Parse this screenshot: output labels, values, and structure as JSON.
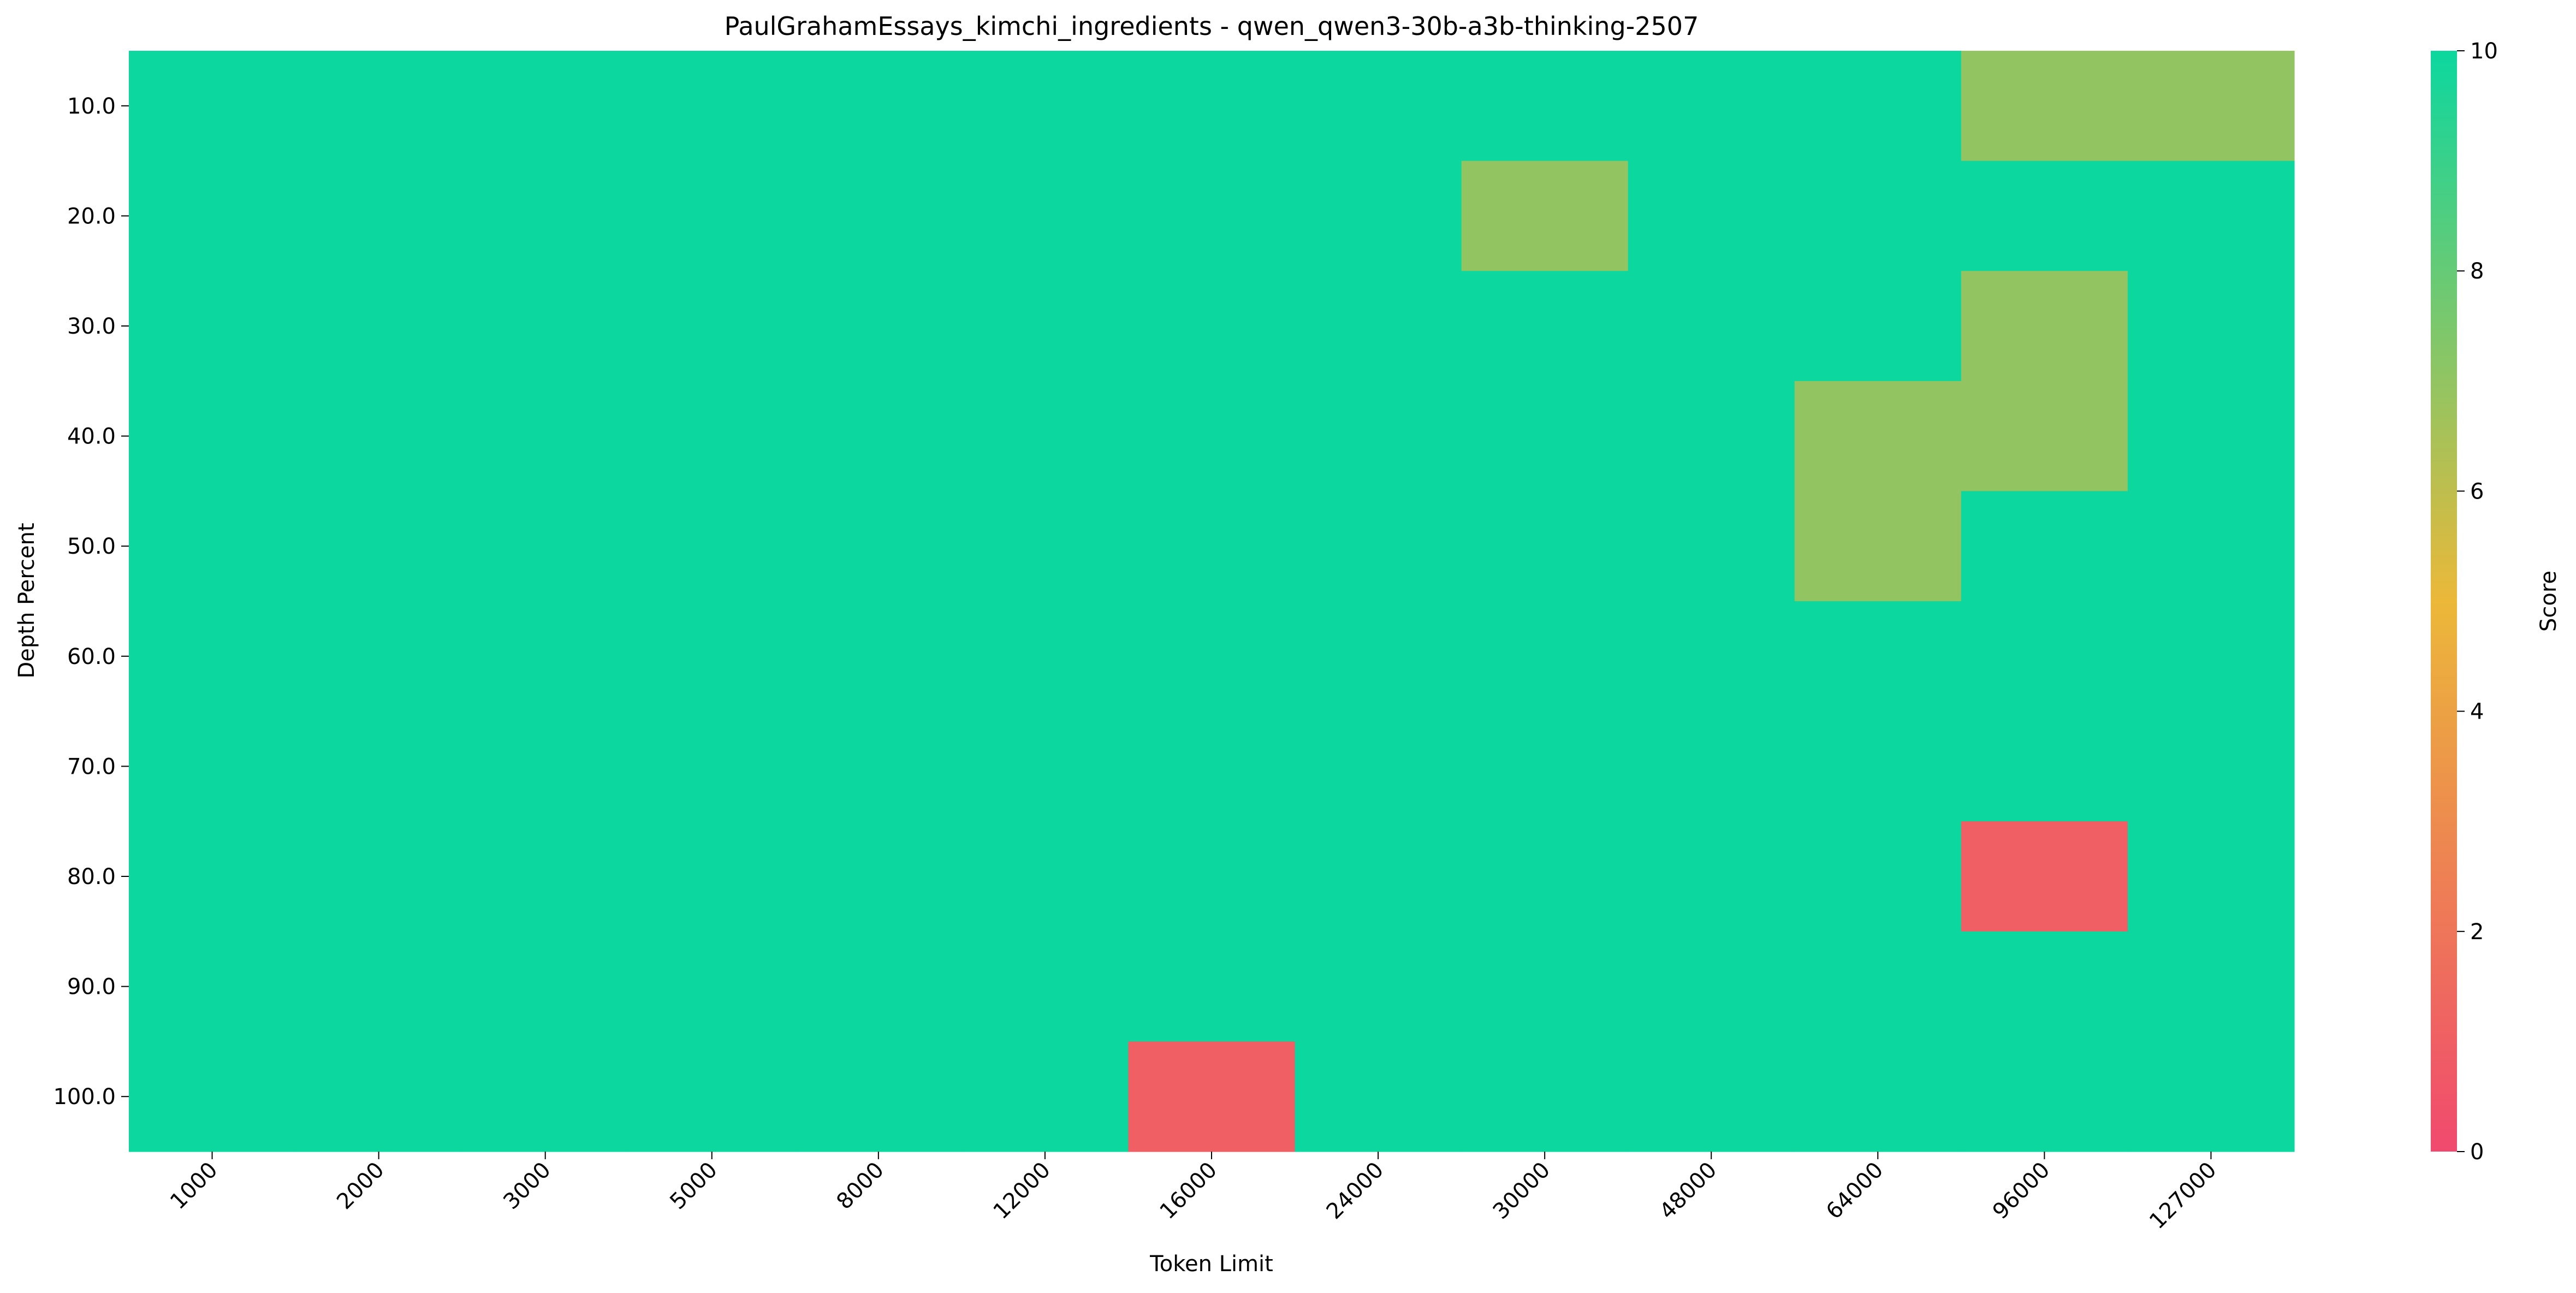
{
  "chart_data": {
    "type": "heatmap",
    "title": "PaulGrahamEssays_kimchi_ingredients - qwen_qwen3-30b-a3b-thinking-2507",
    "xlabel": "Token Limit",
    "ylabel": "Depth Percent",
    "x_categories": [
      "1000",
      "2000",
      "3000",
      "5000",
      "8000",
      "12000",
      "16000",
      "24000",
      "30000",
      "48000",
      "64000",
      "96000",
      "127000"
    ],
    "y_categories": [
      "10.0",
      "20.0",
      "30.0",
      "40.0",
      "50.0",
      "60.0",
      "70.0",
      "80.0",
      "90.0",
      "100.0"
    ],
    "values": [
      [
        10,
        10,
        10,
        10,
        10,
        10,
        10,
        10,
        10,
        10,
        10,
        7,
        7
      ],
      [
        10,
        10,
        10,
        10,
        10,
        10,
        10,
        10,
        7,
        10,
        10,
        10,
        10
      ],
      [
        10,
        10,
        10,
        10,
        10,
        10,
        10,
        10,
        10,
        10,
        10,
        7,
        10
      ],
      [
        10,
        10,
        10,
        10,
        10,
        10,
        10,
        10,
        10,
        10,
        7,
        7,
        10
      ],
      [
        10,
        10,
        10,
        10,
        10,
        10,
        10,
        10,
        10,
        10,
        7,
        10,
        10
      ],
      [
        10,
        10,
        10,
        10,
        10,
        10,
        10,
        10,
        10,
        10,
        10,
        10,
        10
      ],
      [
        10,
        10,
        10,
        10,
        10,
        10,
        10,
        10,
        10,
        10,
        10,
        10,
        10
      ],
      [
        10,
        10,
        10,
        10,
        10,
        10,
        10,
        10,
        10,
        10,
        10,
        1,
        10
      ],
      [
        10,
        10,
        10,
        10,
        10,
        10,
        10,
        10,
        10,
        10,
        10,
        10,
        10
      ],
      [
        10,
        10,
        10,
        10,
        10,
        10,
        1,
        10,
        10,
        10,
        10,
        10,
        10
      ]
    ],
    "colorbar": {
      "label": "Score",
      "range": [
        0,
        10
      ],
      "ticks": [
        "0",
        "2",
        "4",
        "6",
        "8",
        "10"
      ],
      "colors": [
        "#F0496E",
        "#EBB839",
        "#0CD79F"
      ]
    }
  }
}
